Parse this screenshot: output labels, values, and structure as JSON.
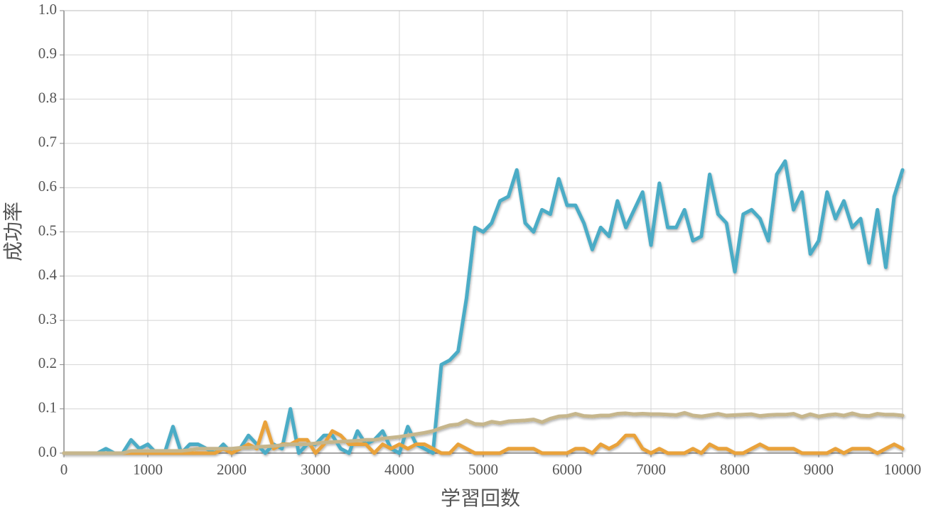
{
  "chart_data": {
    "type": "line",
    "xlabel": "学習回数",
    "ylabel": "成功率",
    "x": [
      0,
      100,
      200,
      300,
      400,
      500,
      600,
      700,
      800,
      900,
      1000,
      1100,
      1200,
      1300,
      1400,
      1500,
      1600,
      1700,
      1800,
      1900,
      2000,
      2100,
      2200,
      2300,
      2400,
      2500,
      2600,
      2700,
      2800,
      2900,
      3000,
      3100,
      3200,
      3300,
      3400,
      3500,
      3600,
      3700,
      3800,
      3900,
      4000,
      4100,
      4200,
      4300,
      4400,
      4500,
      4600,
      4700,
      4800,
      4900,
      5000,
      5100,
      5200,
      5300,
      5400,
      5500,
      5600,
      5700,
      5800,
      5900,
      6000,
      6100,
      6200,
      6300,
      6400,
      6500,
      6600,
      6700,
      6800,
      6900,
      7000,
      7100,
      7200,
      7300,
      7400,
      7500,
      7600,
      7700,
      7800,
      7900,
      8000,
      8100,
      8200,
      8300,
      8400,
      8500,
      8600,
      8700,
      8800,
      8900,
      9000,
      9100,
      9200,
      9300,
      9400,
      9500,
      9600,
      9700,
      9800,
      9900,
      10000
    ],
    "series": [
      {
        "color": "#4bacc6",
        "values": [
          0,
          0,
          0,
          0,
          0,
          0.01,
          0,
          0,
          0.03,
          0.01,
          0.02,
          0,
          0,
          0.06,
          0,
          0.02,
          0.02,
          0.01,
          0,
          0.02,
          0,
          0.01,
          0.04,
          0.02,
          0,
          0.02,
          0.01,
          0.1,
          0,
          0.02,
          0.02,
          0.04,
          0.04,
          0.01,
          0,
          0.05,
          0.02,
          0.03,
          0.05,
          0.01,
          0,
          0.06,
          0.02,
          0.01,
          0,
          0.2,
          0.21,
          0.23,
          0.35,
          0.51,
          0.5,
          0.52,
          0.57,
          0.58,
          0.64,
          0.52,
          0.5,
          0.55,
          0.54,
          0.62,
          0.56,
          0.56,
          0.52,
          0.46,
          0.51,
          0.49,
          0.57,
          0.51,
          0.55,
          0.59,
          0.47,
          0.61,
          0.51,
          0.51,
          0.55,
          0.48,
          0.49,
          0.63,
          0.54,
          0.52,
          0.41,
          0.54,
          0.55,
          0.53,
          0.48,
          0.63,
          0.66,
          0.55,
          0.59,
          0.45,
          0.48,
          0.59,
          0.53,
          0.57,
          0.51,
          0.53,
          0.43,
          0.55,
          0.42,
          0.58,
          0.64
        ]
      },
      {
        "color": "#e9a23b",
        "values": [
          0,
          0,
          0,
          0,
          0,
          0,
          0,
          0,
          0,
          0,
          0,
          0,
          0,
          0,
          0,
          0,
          0,
          0,
          0,
          0.01,
          0,
          0.01,
          0.02,
          0.01,
          0.07,
          0.01,
          0.02,
          0.02,
          0.03,
          0.03,
          0,
          0.02,
          0.05,
          0.04,
          0.02,
          0.02,
          0.02,
          0,
          0.02,
          0.01,
          0.02,
          0.01,
          0.02,
          0.02,
          0.01,
          0,
          0,
          0.02,
          0.01,
          0,
          0,
          0,
          0,
          0.01,
          0.01,
          0.01,
          0.01,
          0,
          0,
          0,
          0,
          0.01,
          0.01,
          0,
          0.02,
          0.01,
          0.02,
          0.04,
          0.04,
          0.01,
          0,
          0.01,
          0,
          0,
          0,
          0.01,
          0,
          0.02,
          0.01,
          0.01,
          0,
          0,
          0.01,
          0.02,
          0.01,
          0.01,
          0.01,
          0.01,
          0,
          0,
          0,
          0,
          0.01,
          0,
          0.01,
          0.01,
          0.01,
          0,
          0.01,
          0.02,
          0.01
        ]
      },
      {
        "color": "#c6b68c",
        "values": [
          0,
          0,
          0,
          0,
          0,
          0,
          0,
          0,
          0.005,
          0.005,
          0.005,
          0.005,
          0.005,
          0.005,
          0.005,
          0.007,
          0.01,
          0.01,
          0.01,
          0.01,
          0.01,
          0.012,
          0.012,
          0.014,
          0.015,
          0.016,
          0.018,
          0.02,
          0.02,
          0.02,
          0.022,
          0.024,
          0.025,
          0.026,
          0.027,
          0.028,
          0.03,
          0.03,
          0.033,
          0.035,
          0.037,
          0.04,
          0.043,
          0.046,
          0.05,
          0.057,
          0.063,
          0.065,
          0.074,
          0.066,
          0.065,
          0.071,
          0.068,
          0.072,
          0.073,
          0.074,
          0.076,
          0.07,
          0.078,
          0.083,
          0.084,
          0.089,
          0.084,
          0.083,
          0.085,
          0.085,
          0.089,
          0.09,
          0.088,
          0.089,
          0.088,
          0.088,
          0.087,
          0.086,
          0.091,
          0.085,
          0.083,
          0.086,
          0.089,
          0.085,
          0.086,
          0.087,
          0.088,
          0.084,
          0.086,
          0.087,
          0.087,
          0.089,
          0.082,
          0.088,
          0.083,
          0.086,
          0.088,
          0.085,
          0.09,
          0.085,
          0.084,
          0.089,
          0.087,
          0.087,
          0.085
        ]
      }
    ],
    "xlim": [
      0,
      10000
    ],
    "xticks": [
      0,
      1000,
      2000,
      3000,
      4000,
      5000,
      6000,
      7000,
      8000,
      9000,
      10000
    ],
    "ylim": [
      0,
      1
    ],
    "yticks": [
      {
        "value": 0,
        "label": "0.0"
      },
      0.1,
      0.2,
      0.3,
      0.4,
      0.5,
      0.6,
      0.7,
      0.8,
      0.9,
      {
        "value": 1,
        "label": "1.0"
      }
    ],
    "grid": true
  }
}
